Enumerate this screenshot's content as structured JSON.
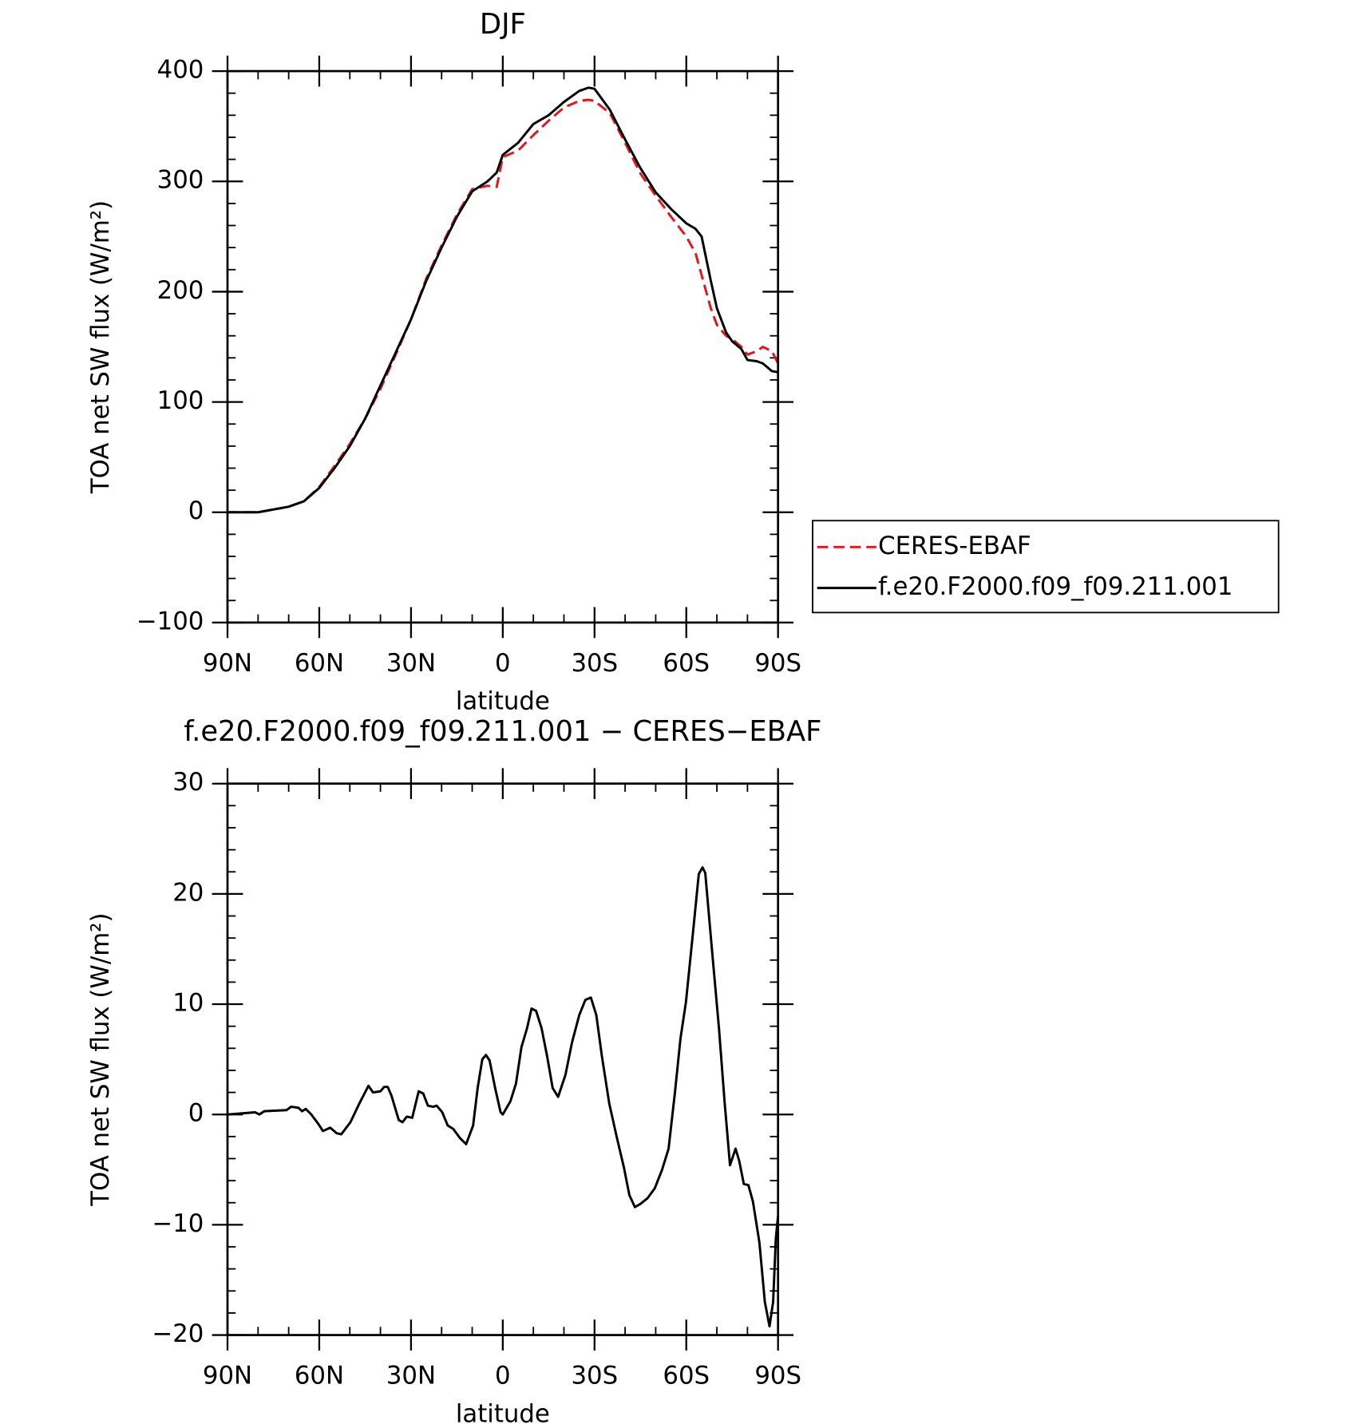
{
  "chart_data": [
    {
      "type": "line",
      "title": "DJF",
      "xlabel": "latitude",
      "ylabel": "TOA net SW flux (W/m²)",
      "x": [
        90,
        80,
        70,
        65,
        60,
        55,
        50,
        45,
        40,
        35,
        30,
        25,
        20,
        15,
        10,
        5,
        2,
        0,
        -5,
        -10,
        -15,
        -20,
        -25,
        -28,
        -30,
        -35,
        -40,
        -45,
        -50,
        -55,
        -60,
        -63,
        -65,
        -68,
        -70,
        -73,
        -75,
        -78,
        -80,
        -83,
        -85,
        -88,
        -90
      ],
      "series": [
        {
          "name": "CERES-EBAF",
          "color": "#e8141c",
          "line_style": "dashed",
          "values": [
            0,
            0,
            5,
            10,
            23,
            42,
            62,
            85,
            112,
            143,
            175,
            212,
            242,
            270,
            293,
            296,
            295,
            322,
            328,
            342,
            355,
            367,
            373,
            374,
            373,
            362,
            335,
            307,
            287,
            268,
            250,
            235,
            215,
            185,
            170,
            160,
            157,
            150,
            143,
            146,
            150,
            146,
            135
          ]
        },
        {
          "name": "f.e20.F2000.f09_f09.211.001",
          "color": "#000000",
          "line_style": "solid",
          "values": [
            0,
            0,
            5,
            10,
            22,
            40,
            60,
            85,
            115,
            145,
            175,
            210,
            240,
            268,
            291,
            300,
            308,
            324,
            335,
            352,
            360,
            372,
            382,
            385,
            384,
            365,
            338,
            312,
            290,
            275,
            262,
            257,
            250,
            210,
            185,
            163,
            155,
            148,
            138,
            137,
            135,
            128,
            127
          ]
        }
      ],
      "xlim": [
        90,
        -90
      ],
      "xticks": [
        {
          "value": 90,
          "label": "90N"
        },
        {
          "value": 60,
          "label": "60N"
        },
        {
          "value": 30,
          "label": "30N"
        },
        0,
        {
          "value": -30,
          "label": "30S"
        },
        {
          "value": -60,
          "label": "60S"
        },
        {
          "value": -90,
          "label": "90S"
        }
      ],
      "ylim": [
        -100,
        400
      ],
      "yticks": [
        {
          "value": -100,
          "label": "−100"
        },
        0,
        100,
        200,
        300,
        400
      ],
      "legend": "right"
    },
    {
      "type": "line",
      "title": "f.e20.F2000.f09_f09.211.001 − CERES−EBAF",
      "xlabel": "latitude",
      "ylabel": "TOA net SW flux (W/m²)",
      "x": [
        90,
        81,
        79.6,
        78,
        70.7,
        69.2,
        66.8,
        65.6,
        64.4,
        62.6,
        60.2,
        58.8,
        56.4,
        54.3,
        52.8,
        49.8,
        46.9,
        43.9,
        42.4,
        40,
        38.8,
        37.6,
        36.4,
        34,
        32.8,
        31.4,
        29.6,
        27.5,
        26,
        24.5,
        22.8,
        21.6,
        19.8,
        18,
        16.2,
        14.1,
        12,
        9.7,
        8.2,
        6.7,
        5.5,
        4.3,
        2.5,
        0.7,
        0,
        -2.5,
        -4.3,
        -6.1,
        -7.9,
        -9.4,
        -10.9,
        -12.7,
        -14.5,
        -16.3,
        -18.1,
        -20.5,
        -22.6,
        -25,
        -27,
        -28.8,
        -30.6,
        -32.4,
        -34.8,
        -37.3,
        -39.6,
        -41.4,
        -43.2,
        -45,
        -47.3,
        -49.7,
        -52.1,
        -54.2,
        -56.3,
        -58.1,
        -59.9,
        -62.3,
        -64.1,
        -65.3,
        -66.2,
        -68.3,
        -70.7,
        -72.5,
        -74.3,
        -76.1,
        -77.3,
        -78.8,
        -80.3,
        -81.8,
        -83.9,
        -85.7,
        -87.2,
        -88.4,
        -89.3,
        -90
      ],
      "series": [
        {
          "name": "f.e20.F2000.f09_f09.211.001",
          "color": "#000000",
          "line_style": "solid",
          "values": [
            0,
            0.2,
            0,
            0.3,
            0.4,
            0.7,
            0.6,
            0.3,
            0.5,
            0,
            -0.9,
            -1.5,
            -1.2,
            -1.7,
            -1.8,
            -0.7,
            1,
            2.6,
            2,
            2.1,
            2.5,
            2.5,
            1.7,
            -0.5,
            -0.7,
            -0.2,
            -0.3,
            2.1,
            1.9,
            0.8,
            0.7,
            0.8,
            0.2,
            -1,
            -1.3,
            -2.1,
            -2.7,
            -1,
            2.4,
            5,
            5.4,
            4.9,
            2.4,
            0.2,
            0,
            1.2,
            2.8,
            6.1,
            7.8,
            9.6,
            9.4,
            7.8,
            5.3,
            2.4,
            1.6,
            3.6,
            6.5,
            9,
            10.4,
            10.6,
            9,
            5.3,
            1,
            -2.1,
            -4.8,
            -7.3,
            -8.4,
            -8.1,
            -7.6,
            -6.7,
            -5,
            -3.1,
            2,
            6.9,
            10.2,
            16.8,
            21.8,
            22.4,
            21.9,
            15.2,
            7.8,
            1.2,
            -4.6,
            -3.1,
            -4.2,
            -6.3,
            -6.4,
            -7.9,
            -11.6,
            -17,
            -19.2,
            -17,
            -11.2,
            -9.2
          ]
        }
      ],
      "xlim": [
        90,
        -90
      ],
      "xticks": [
        {
          "value": 90,
          "label": "90N"
        },
        {
          "value": 60,
          "label": "60N"
        },
        {
          "value": 30,
          "label": "30N"
        },
        0,
        {
          "value": -30,
          "label": "30S"
        },
        {
          "value": -60,
          "label": "60S"
        },
        {
          "value": -90,
          "label": "90S"
        }
      ],
      "ylim": [
        -20,
        30
      ],
      "yticks": [
        {
          "value": -20,
          "label": "−20"
        },
        {
          "value": -10,
          "label": "−10"
        },
        0,
        10,
        20,
        30
      ]
    }
  ]
}
